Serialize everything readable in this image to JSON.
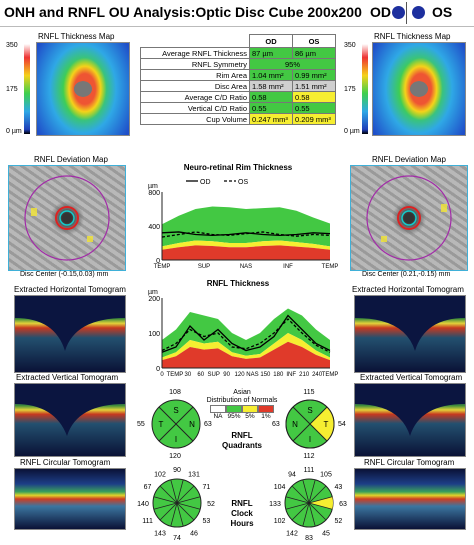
{
  "header": {
    "title": "ONH and RNFL OU Analysis:Optic Disc Cube 200x200",
    "od_label": "OD",
    "os_label": "OS"
  },
  "colors": {
    "normal": "#43c843",
    "borderline": "#f6ee31",
    "outside": "#e03a2a",
    "od_line": "#000000",
    "os_line": "#000000",
    "eye_dot": "#1d2f9e"
  },
  "thickness_map": {
    "title": "RNFL Thickness Map",
    "scale_top": "350",
    "scale_mid": "175",
    "scale_bottom": "0 µm"
  },
  "table": {
    "col_od": "OD",
    "col_os": "OS",
    "rows": [
      {
        "label": "Average RNFL Thickness",
        "od": "87 µm",
        "os": "86 µm",
        "od_c": "green",
        "os_c": "green"
      },
      {
        "label": "RNFL Symmetry",
        "merged": "95%",
        "c": "green"
      },
      {
        "label": "Rim Area",
        "od": "1.04 mm²",
        "os": "0.99 mm²",
        "od_c": "green",
        "os_c": "green"
      },
      {
        "label": "Disc Area",
        "od": "1.58 mm²",
        "os": "1.51 mm²",
        "od_c": "gray",
        "os_c": "gray"
      },
      {
        "label": "Average C/D Ratio",
        "od": "0.58",
        "os": "0.58",
        "od_c": "green",
        "os_c": "yellow"
      },
      {
        "label": "Vertical C/D Ratio",
        "od": "0.55",
        "os": "0.55",
        "od_c": "green",
        "os_c": "green"
      },
      {
        "label": "Cup Volume",
        "od": "0.247 mm³",
        "os": "0.209 mm³",
        "od_c": "yellow",
        "os_c": "yellow"
      }
    ]
  },
  "deviation_map": {
    "title": "RNFL Deviation Map",
    "od_center": "Disc Center (-0.15,0.03) mm",
    "os_center": "Disc Center (0.21,-0.15) mm"
  },
  "tomograms": {
    "horizontal": "Extracted Horizontal Tomogram",
    "vertical": "Extracted Vertical Tomogram",
    "circular": "RNFL Circular Tomogram"
  },
  "chart_data": [
    {
      "type": "area",
      "title": "Neuro-retinal Rim Thickness",
      "ylabel": "µm",
      "legend": [
        "OD",
        "OS"
      ],
      "legend_placement": "top-center",
      "y_ticks": [
        "800",
        "400",
        "0"
      ],
      "ylim": [
        0,
        800
      ],
      "x_ticks": [
        "TEMP",
        "SUP",
        "NAS",
        "INF",
        "TEMP"
      ],
      "series": [
        {
          "name": "OD",
          "values": [
            320,
            330,
            300,
            290,
            300,
            320,
            300,
            290,
            300,
            320,
            310
          ]
        },
        {
          "name": "OS",
          "values": [
            270,
            300,
            330,
            300,
            290,
            310,
            330,
            300,
            280,
            300,
            290
          ]
        }
      ],
      "normative": {
        "p5": [
          160,
          200,
          230,
          220,
          200,
          200,
          220,
          230,
          210,
          190,
          160
        ],
        "p95": [
          420,
          520,
          600,
          630,
          620,
          600,
          610,
          620,
          580,
          500,
          430
        ]
      }
    },
    {
      "type": "area",
      "title": "RNFL Thickness",
      "ylabel": "µm",
      "y_ticks": [
        "200",
        "100",
        "0"
      ],
      "ylim": [
        0,
        200
      ],
      "x_ticks": [
        "0",
        "TEMP",
        "30",
        "60",
        "SUP",
        "90",
        "120",
        "NAS",
        "150",
        "180",
        "INF",
        "210",
        "240",
        "TEMP"
      ],
      "series": [
        {
          "name": "OD",
          "values": [
            45,
            60,
            120,
            80,
            110,
            70,
            50,
            60,
            90,
            150,
            110,
            70,
            50
          ]
        },
        {
          "name": "OS",
          "values": [
            50,
            70,
            110,
            90,
            100,
            60,
            55,
            70,
            100,
            140,
            100,
            65,
            45
          ]
        }
      ],
      "normative": {
        "p5": [
          30,
          45,
          80,
          70,
          75,
          45,
          35,
          40,
          70,
          100,
          80,
          50,
          30
        ],
        "p95": [
          80,
          110,
          160,
          150,
          140,
          100,
          80,
          100,
          140,
          170,
          150,
          110,
          80
        ]
      }
    }
  ],
  "distribution_legend": {
    "title": "Asian",
    "subtitle": "Distribution of Normals",
    "labels": [
      "NA",
      "95%",
      "5%",
      "1%"
    ]
  },
  "quadrants": {
    "title": "RNFL",
    "subtitle": "Quadrants",
    "letters": {
      "S": "S",
      "N": "N",
      "I": "I",
      "T": "T"
    },
    "od": {
      "top": "108",
      "left": "55",
      "right": "63",
      "bottom": "120"
    },
    "os": {
      "top": "115",
      "left": "63",
      "right": "54",
      "bottom": "112"
    }
  },
  "clock_hours": {
    "title": "RNFL",
    "subtitle": "Clock",
    "subtitle2": "Hours",
    "od_values": [
      "90",
      "131",
      "71",
      "52",
      "53",
      "46",
      "74",
      "143",
      "111",
      "140",
      "67",
      "102"
    ],
    "os_values": [
      "111",
      "105",
      "43",
      "63",
      "52",
      "45",
      "83",
      "142",
      "102",
      "133",
      "104",
      "94"
    ]
  }
}
